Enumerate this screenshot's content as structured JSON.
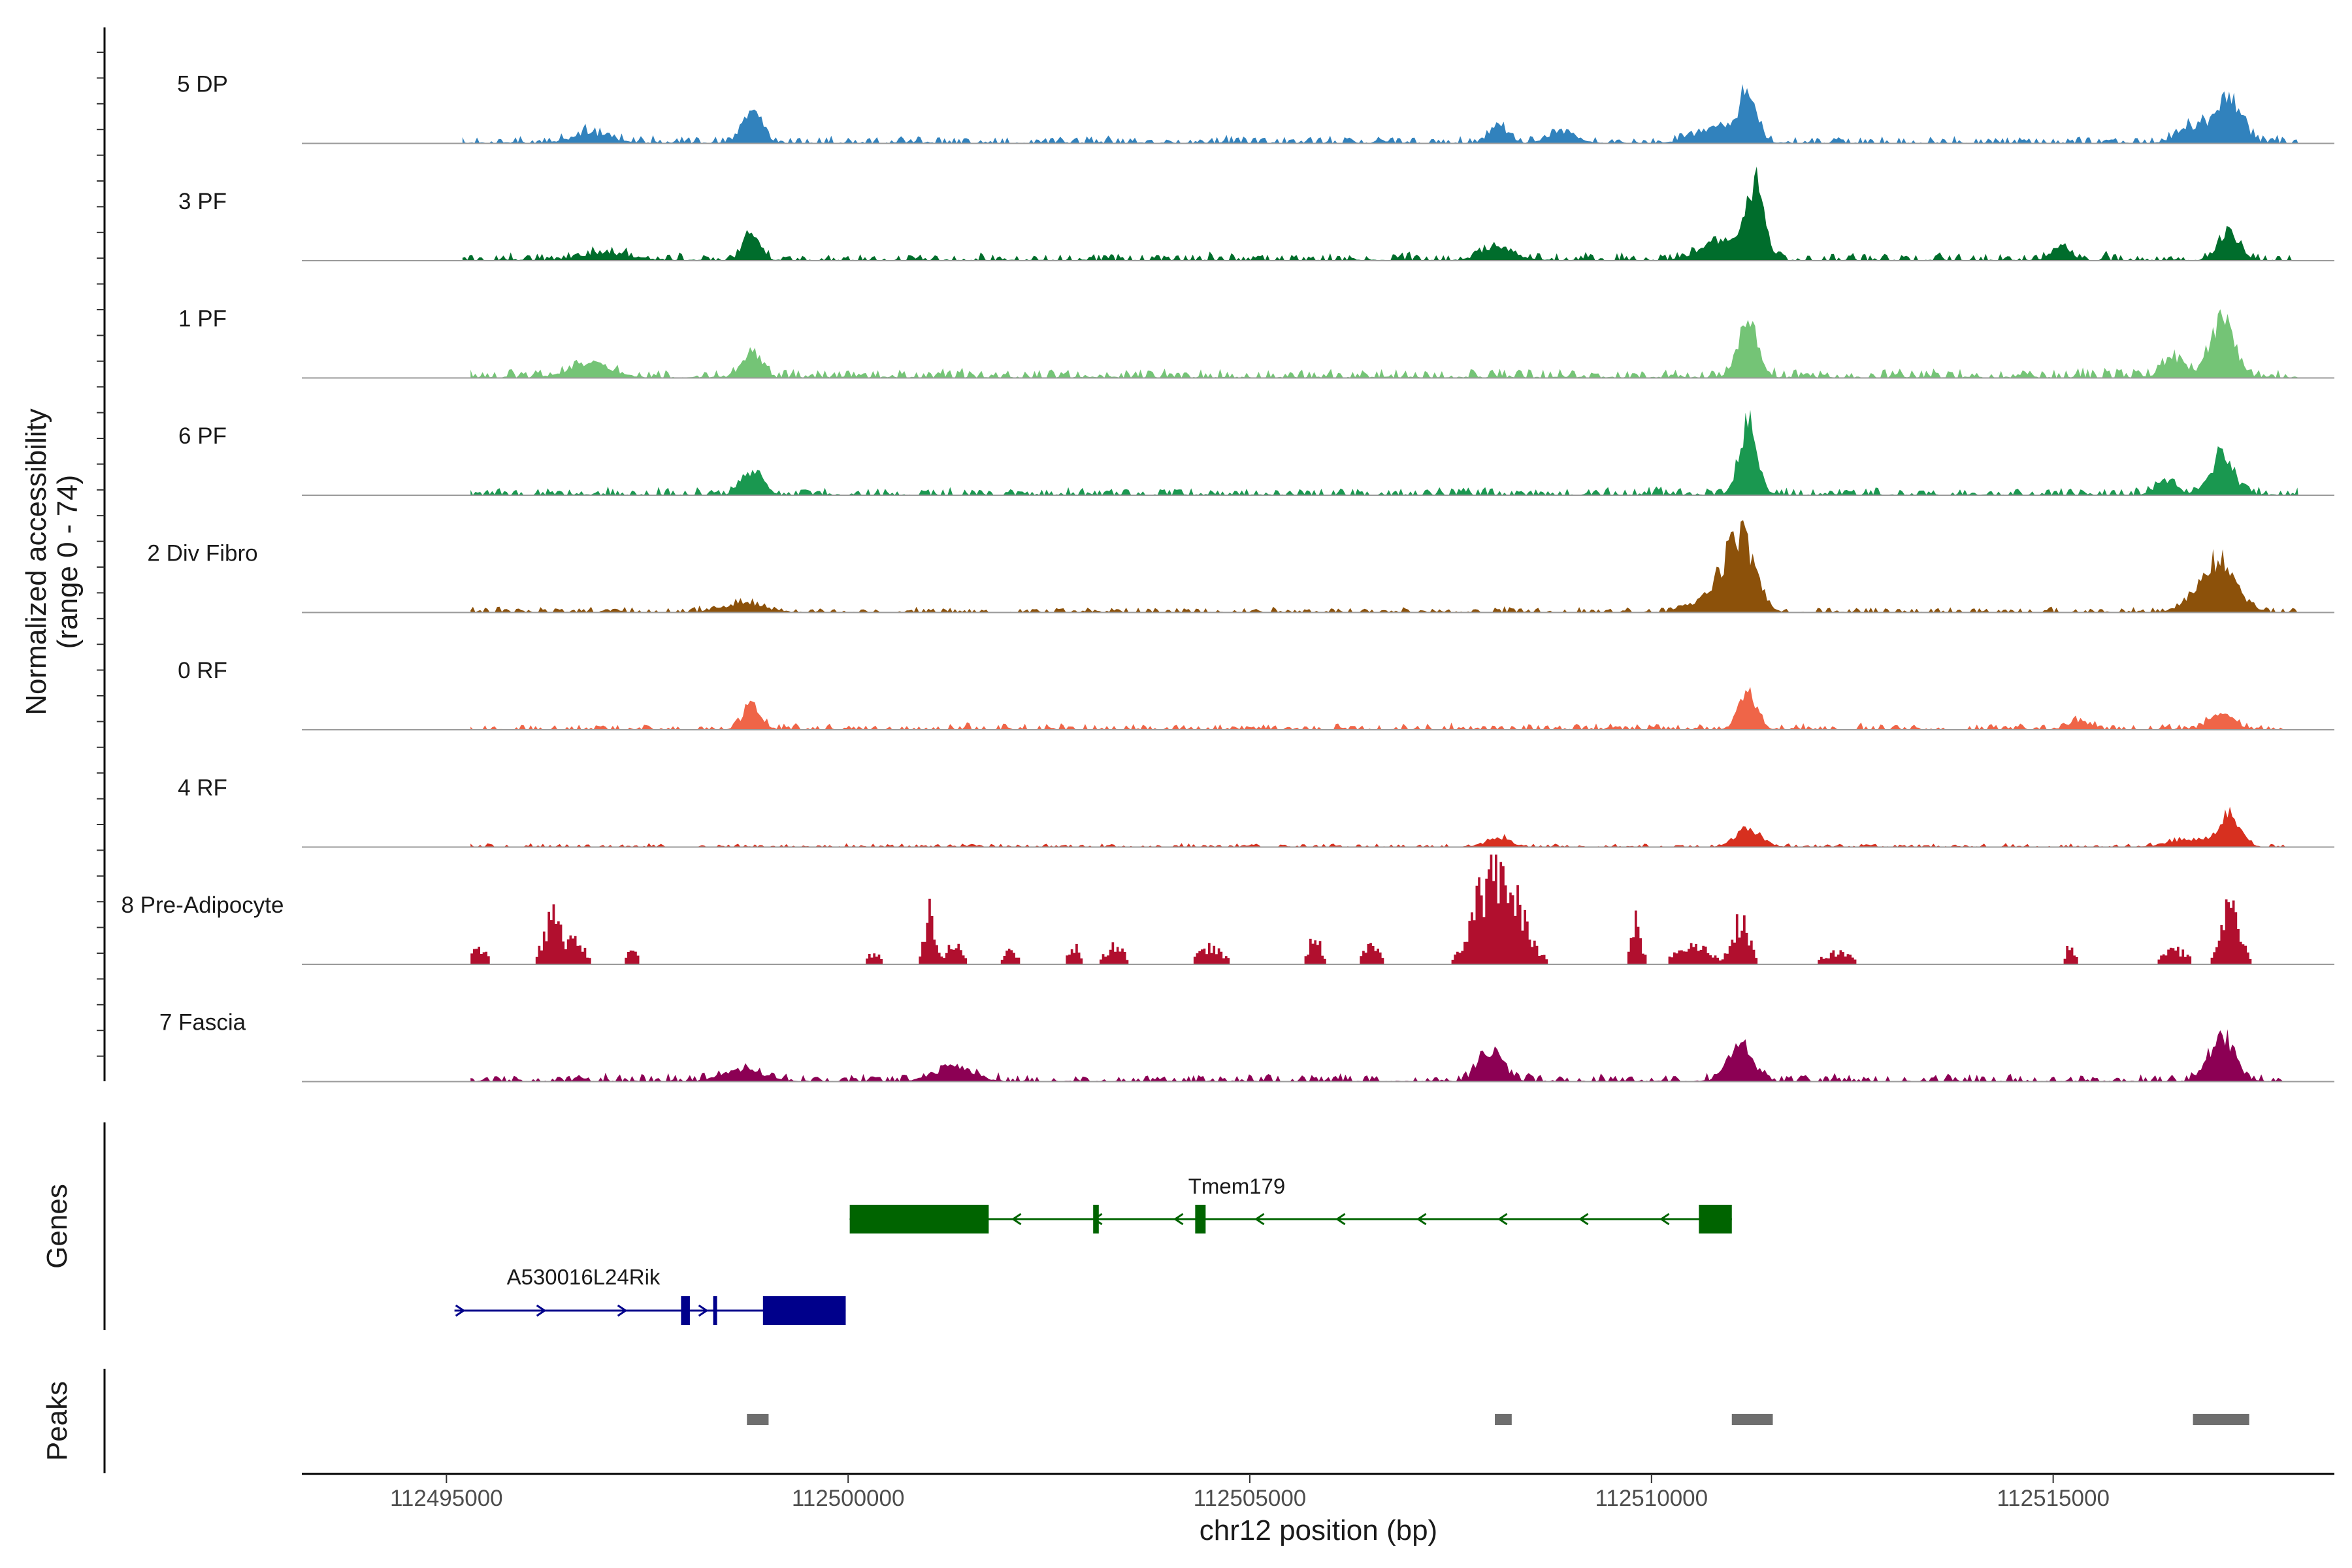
{
  "chart_data": {
    "type": "coverage",
    "y_axis_title_line1": "Normalized accessibility",
    "y_axis_title_line2": "(range 0 - 74)",
    "y_range": [
      0,
      74
    ],
    "x_axis_title": "chr12 position (bp)",
    "x_range": [
      112493200,
      112518500
    ],
    "x_ticks": [
      112495000,
      112500000,
      112505000,
      112510000,
      112515000
    ],
    "x_tick_labels": [
      "112495000",
      "112500000",
      "112505000",
      "112510000",
      "112515000"
    ],
    "tracks": [
      {
        "name": "5 DP",
        "color": "#3182bd",
        "span": [
          112495200,
          112518050
        ],
        "baseline": 3,
        "noise": 3,
        "peaks": [
          [
            112496800,
            250,
            6
          ],
          [
            112498800,
            120,
            20
          ],
          [
            112508100,
            110,
            11
          ],
          [
            112508900,
            160,
            8
          ],
          [
            112510800,
            260,
            10
          ],
          [
            112511200,
            110,
            30
          ],
          [
            112516800,
            210,
            12
          ],
          [
            112517200,
            150,
            28
          ]
        ]
      },
      {
        "name": "3 PF",
        "color": "#006d2c",
        "span": [
          112495200,
          112518050
        ],
        "baseline": 3,
        "noise": 3,
        "peaks": [
          [
            112497000,
            300,
            5
          ],
          [
            112498800,
            100,
            18
          ],
          [
            112508100,
            200,
            8
          ],
          [
            112510900,
            260,
            14
          ],
          [
            112511300,
            110,
            48
          ],
          [
            112515100,
            110,
            10
          ],
          [
            112517200,
            130,
            18
          ]
        ]
      },
      {
        "name": "1 PF",
        "color": "#74c476",
        "span": [
          112495300,
          112518050
        ],
        "baseline": 4,
        "noise": 3,
        "peaks": [
          [
            112496800,
            250,
            10
          ],
          [
            112498800,
            120,
            15
          ],
          [
            112511200,
            120,
            38
          ],
          [
            112516500,
            140,
            12
          ],
          [
            112517100,
            150,
            38
          ]
        ]
      },
      {
        "name": "6 PF",
        "color": "#1a9850",
        "span": [
          112495300,
          112518050
        ],
        "baseline": 3,
        "noise": 3,
        "peaks": [
          [
            112498800,
            120,
            16
          ],
          [
            112511200,
            110,
            48
          ],
          [
            112516400,
            120,
            10
          ],
          [
            112517100,
            150,
            25
          ]
        ]
      },
      {
        "name": "2 Div Fibro",
        "color": "#8c510a",
        "span": [
          112495300,
          112518050
        ],
        "baseline": 2,
        "noise": 2,
        "peaks": [
          [
            112498700,
            250,
            6
          ],
          [
            112511100,
            180,
            46
          ],
          [
            112510800,
            250,
            10
          ],
          [
            112517100,
            180,
            34
          ],
          [
            112516800,
            200,
            8
          ]
        ]
      },
      {
        "name": "0 RF",
        "color": "#ef6548",
        "span": [
          112495300,
          112517900
        ],
        "baseline": 2,
        "noise": 3,
        "peaks": [
          [
            112498800,
            110,
            16
          ],
          [
            112511200,
            110,
            25
          ],
          [
            112517100,
            150,
            10
          ],
          [
            112515300,
            120,
            6
          ]
        ]
      },
      {
        "name": "4 RF",
        "color": "#d7301f",
        "span": [
          112495300,
          112517900
        ],
        "baseline": 1,
        "noise": 2,
        "peaks": [
          [
            112508100,
            150,
            6
          ],
          [
            112511200,
            160,
            12
          ],
          [
            112516700,
            250,
            5
          ],
          [
            112517200,
            130,
            22
          ]
        ]
      },
      {
        "name": "8 Pre-Adipocyte",
        "color": "#b10f2e",
        "span": [
          112495300,
          112517600
        ],
        "baseline": 0,
        "noise": 0,
        "sparse": true,
        "peaks": [
          [
            112495400,
            90,
            12
          ],
          [
            112496300,
            100,
            36
          ],
          [
            112496600,
            100,
            18
          ],
          [
            112497300,
            60,
            10
          ],
          [
            112500300,
            90,
            8
          ],
          [
            112501000,
            60,
            42
          ],
          [
            112501300,
            100,
            14
          ],
          [
            112502000,
            90,
            10
          ],
          [
            112502800,
            80,
            12
          ],
          [
            112503300,
            120,
            13
          ],
          [
            112504500,
            150,
            12
          ],
          [
            112505800,
            70,
            22
          ],
          [
            112506500,
            100,
            12
          ],
          [
            112508000,
            220,
            60
          ],
          [
            112508300,
            200,
            25
          ],
          [
            112509800,
            60,
            30
          ],
          [
            112510500,
            200,
            14
          ],
          [
            112511100,
            100,
            33
          ],
          [
            112512300,
            200,
            8
          ],
          [
            112515200,
            60,
            13
          ],
          [
            112516500,
            150,
            10
          ],
          [
            112517200,
            120,
            40
          ]
        ]
      },
      {
        "name": "7 Fascia",
        "color": "#8c0054",
        "span": [
          112495300,
          112517900
        ],
        "baseline": 3,
        "noise": 3,
        "peaks": [
          [
            112498700,
            250,
            7
          ],
          [
            112501300,
            250,
            8
          ],
          [
            112508000,
            150,
            20
          ],
          [
            112511100,
            150,
            24
          ],
          [
            112517100,
            150,
            30
          ]
        ]
      }
    ],
    "genes_track_label": "Genes",
    "genes": [
      {
        "name": "Tmem179",
        "strand": "-",
        "color": "#006400",
        "start": 112500020,
        "end": 112511000,
        "exons": [
          [
            112500020,
            112501750
          ],
          [
            112503050,
            112503120
          ],
          [
            112504320,
            112504450
          ],
          [
            112510590,
            112511000
          ]
        ]
      },
      {
        "name": "A530016L24Rik",
        "strand": "+",
        "color": "#00008b",
        "start": 112495100,
        "end": 112499970,
        "exons": [
          [
            112497920,
            112498030
          ],
          [
            112498320,
            112498350
          ],
          [
            112498940,
            112499970
          ]
        ]
      }
    ],
    "peaks_track_label": "Peaks",
    "peaks": [
      [
        112498740,
        112499010
      ],
      [
        112508050,
        112508260
      ],
      [
        112511000,
        112511510
      ],
      [
        112516740,
        112517440
      ]
    ]
  }
}
